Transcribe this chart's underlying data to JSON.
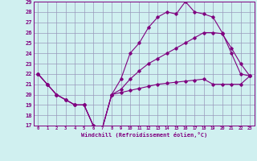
{
  "xlabel": "Windchill (Refroidissement éolien,°C)",
  "x_values": [
    0,
    1,
    2,
    3,
    4,
    5,
    6,
    7,
    8,
    9,
    10,
    11,
    12,
    13,
    14,
    15,
    16,
    17,
    18,
    19,
    20,
    21,
    22,
    23
  ],
  "s1": [
    22,
    21,
    20,
    19.5,
    19,
    19,
    17,
    16.8,
    20.0,
    20.2,
    20.4,
    20.6,
    20.8,
    21.0,
    21.1,
    21.2,
    21.3,
    21.4,
    21.5,
    21.0,
    21.0,
    21.0,
    21.0,
    21.8
  ],
  "s2": [
    22,
    21,
    20,
    19.5,
    19,
    19,
    17,
    16.8,
    20.0,
    20.5,
    21.5,
    22.3,
    23.0,
    23.5,
    24.0,
    24.5,
    25.0,
    25.5,
    26.0,
    26.0,
    25.9,
    24.5,
    23.0,
    21.8
  ],
  "s3": [
    22,
    21,
    20,
    19.5,
    19,
    19,
    17,
    16.8,
    20.0,
    21.5,
    24.0,
    25.0,
    26.5,
    27.5,
    28.0,
    27.8,
    29.0,
    28.0,
    27.8,
    27.5,
    26.0,
    24.0,
    22.0,
    21.8
  ],
  "line_color": "#800080",
  "bg_color": "#d0f0f0",
  "grid_color": "#9999bb",
  "ylim": [
    17,
    29
  ],
  "yticks": [
    17,
    18,
    19,
    20,
    21,
    22,
    23,
    24,
    25,
    26,
    27,
    28,
    29
  ]
}
